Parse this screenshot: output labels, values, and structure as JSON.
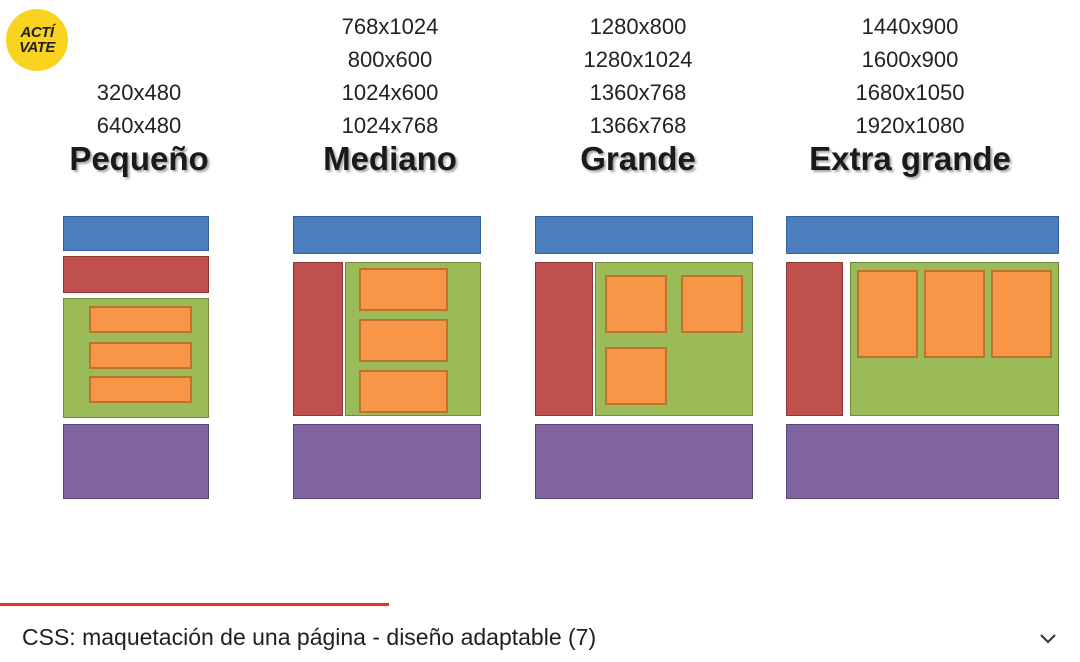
{
  "logo": {
    "line1": "ACTÍ",
    "line2": "VATE"
  },
  "columns": [
    {
      "heading": "Pequeño",
      "resolutions": [
        "320x480",
        "640x480"
      ]
    },
    {
      "heading": "Mediano",
      "resolutions": [
        "768x1024",
        "800x600",
        "1024x600",
        "1024x768"
      ]
    },
    {
      "heading": "Grande",
      "resolutions": [
        "1280x800",
        "1280x1024",
        "1360x768",
        "1366x768"
      ]
    },
    {
      "heading": "Extra grande",
      "resolutions": [
        "1440x900",
        "1600x900",
        "1680x1050",
        "1920x1080"
      ]
    }
  ],
  "video": {
    "title": "CSS: maquetación de una página - diseño adaptable (7)",
    "progress": 0.36
  },
  "icons": {
    "logo": "activate-logo-icon",
    "expand": "chevron-down-icon"
  },
  "colors": {
    "header": "#4a7ebf",
    "sidebar": "#c0504d",
    "content": "#9bbb59",
    "module": "#f79646",
    "footer": "#8064a2",
    "progress": "#e53030",
    "logo": "#f8d320"
  }
}
